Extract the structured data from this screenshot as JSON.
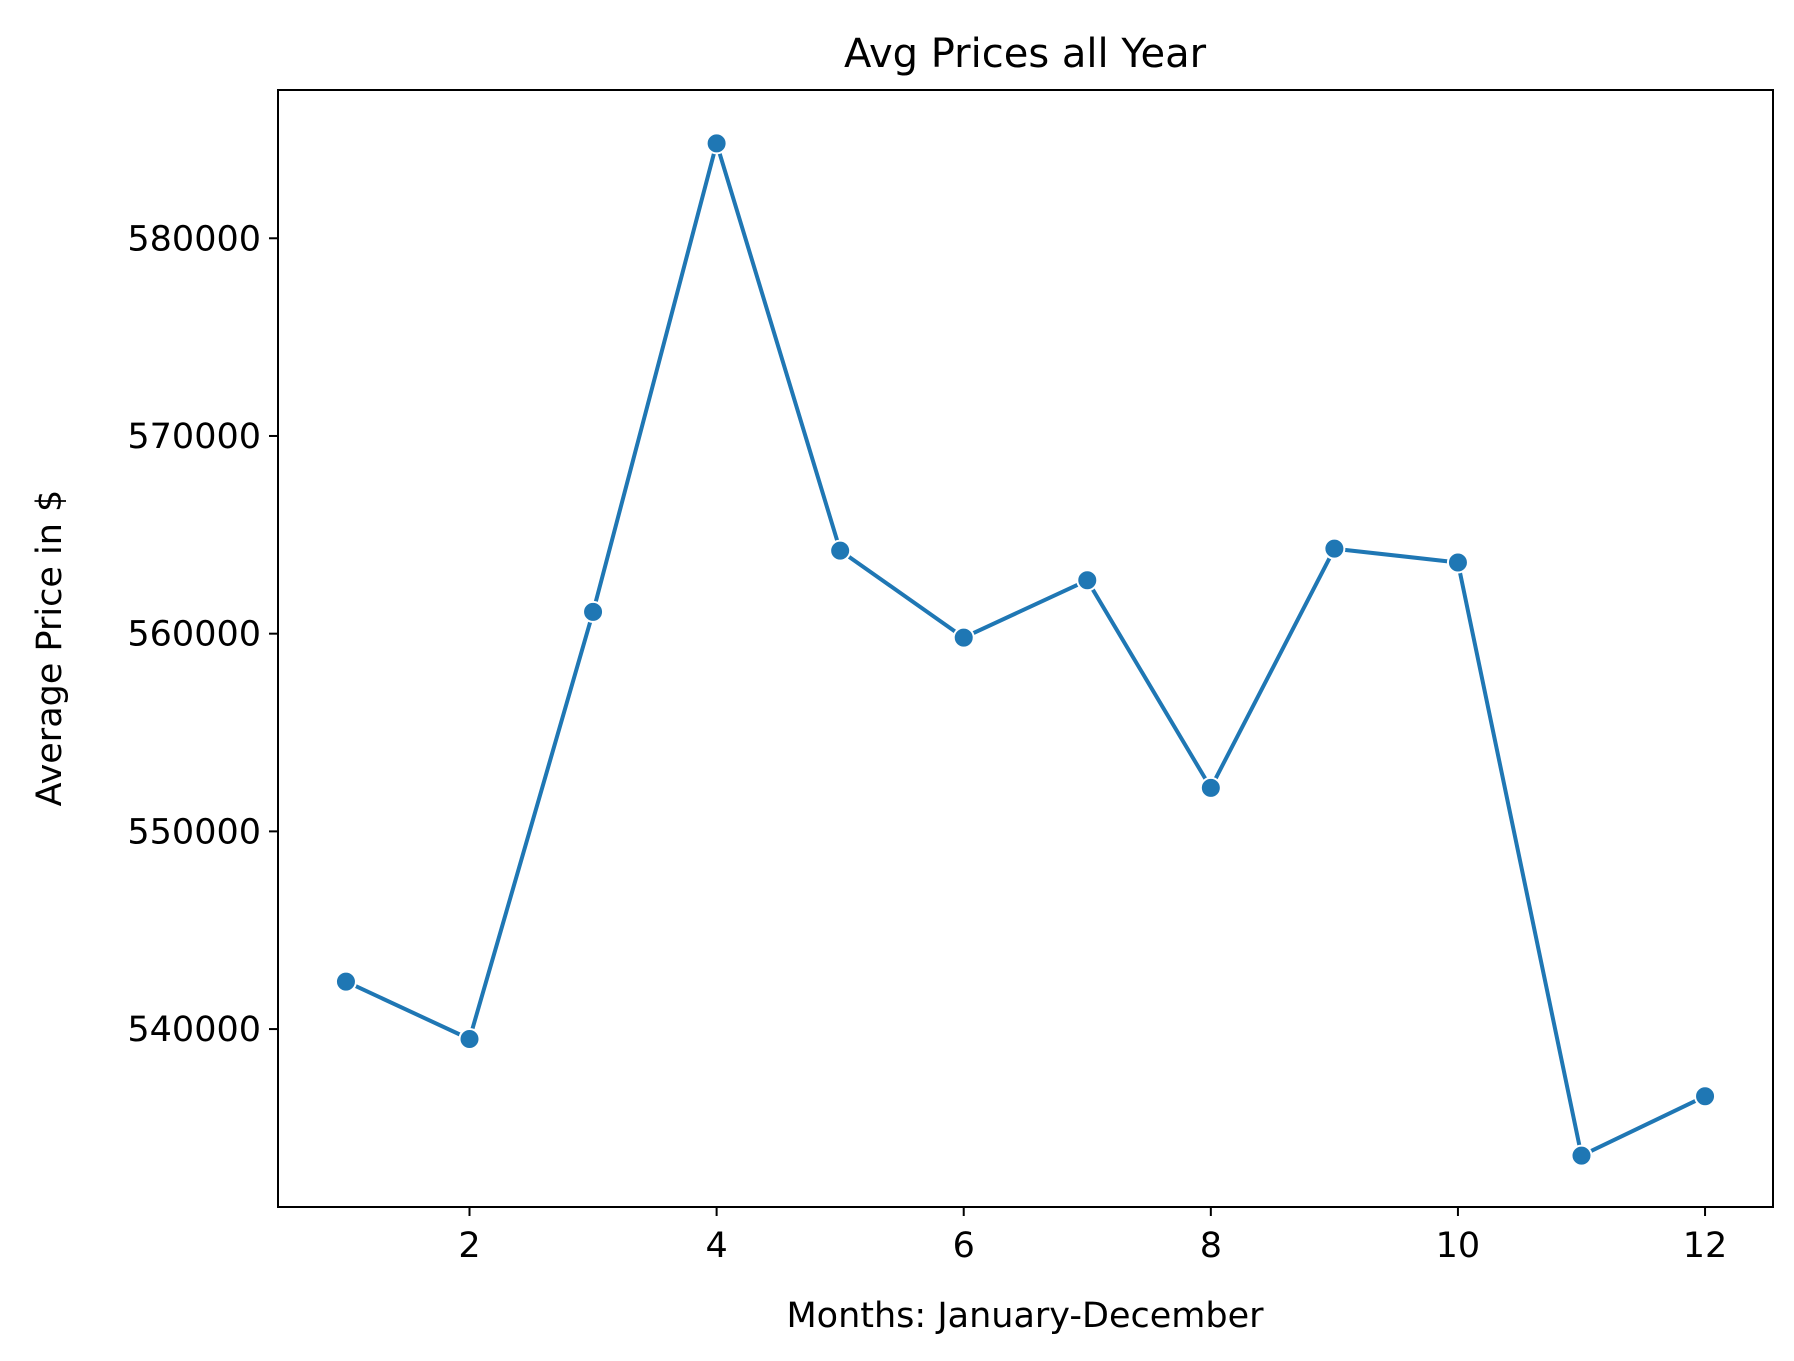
{
  "chart_data": {
    "type": "line",
    "title": "Avg Prices all Year",
    "xlabel": "Months: January-December",
    "ylabel": "Average Price in $",
    "x": [
      1,
      2,
      3,
      4,
      5,
      6,
      7,
      8,
      9,
      10,
      11,
      12
    ],
    "series": [
      {
        "values": [
          542400,
          539500,
          561100,
          584800,
          564200,
          559800,
          562700,
          552200,
          564300,
          563600,
          533600,
          536600
        ]
      }
    ],
    "xlim": [
      0.45,
      12.55
    ],
    "ylim": [
      531000,
      587500
    ],
    "xticks": [
      2,
      4,
      6,
      8,
      10,
      12
    ],
    "xtick_labels": [
      "2",
      "4",
      "6",
      "8",
      "10",
      "12"
    ],
    "yticks": [
      540000,
      550000,
      560000,
      570000,
      580000
    ],
    "ytick_labels": [
      "540000",
      "550000",
      "560000",
      "570000",
      "580000"
    ],
    "grid": false,
    "legend": false,
    "color": "#1f77b4"
  }
}
